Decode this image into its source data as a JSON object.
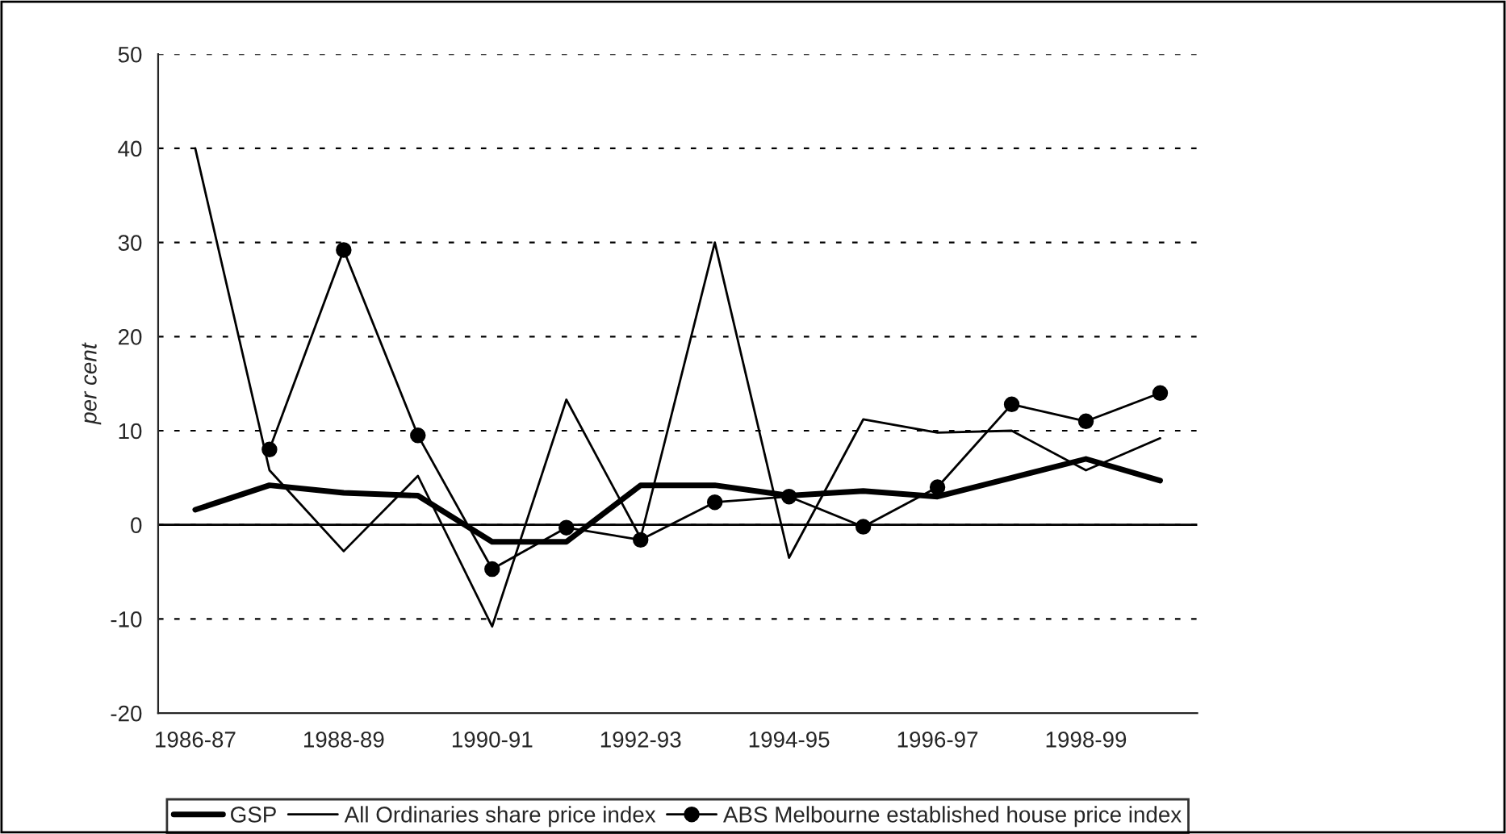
{
  "chart_data": {
    "type": "line",
    "ylabel": "per cent",
    "categories": [
      "1986-87",
      null,
      "1988-89",
      null,
      "1990-91",
      null,
      "1992-93",
      null,
      "1994-95",
      null,
      "1996-97",
      null,
      "1998-99",
      null
    ],
    "series": [
      {
        "name": "GSP",
        "color": "#000000",
        "marker": "none",
        "values": [
          1.6,
          4.2,
          3.4,
          3.1,
          -1.8,
          -1.8,
          4.2,
          4.2,
          3.1,
          3.6,
          3.0,
          5.0,
          7.0,
          4.7
        ]
      },
      {
        "name": "All Ordinaries share price index",
        "color": "#000000",
        "marker": "none",
        "values": [
          40,
          5.8,
          -2.8,
          5.2,
          -10.8,
          13.3,
          -1.4,
          30,
          -3.5,
          11.2,
          9.8,
          10,
          5.8,
          9.2
        ]
      },
      {
        "name": "ABS Melbourne established house price index",
        "color": "#000000",
        "marker": "circle",
        "values": [
          null,
          8,
          29.2,
          9.5,
          -4.7,
          -0.3,
          -1.6,
          2.4,
          3.0,
          -0.2,
          4.0,
          12.8,
          11,
          14
        ]
      }
    ],
    "ylim": [
      -20,
      50
    ],
    "yticks": [
      -20,
      -10,
      0,
      10,
      20,
      30,
      40,
      50
    ],
    "grid": "y",
    "legend": "bottom",
    "line_style": "solid"
  }
}
